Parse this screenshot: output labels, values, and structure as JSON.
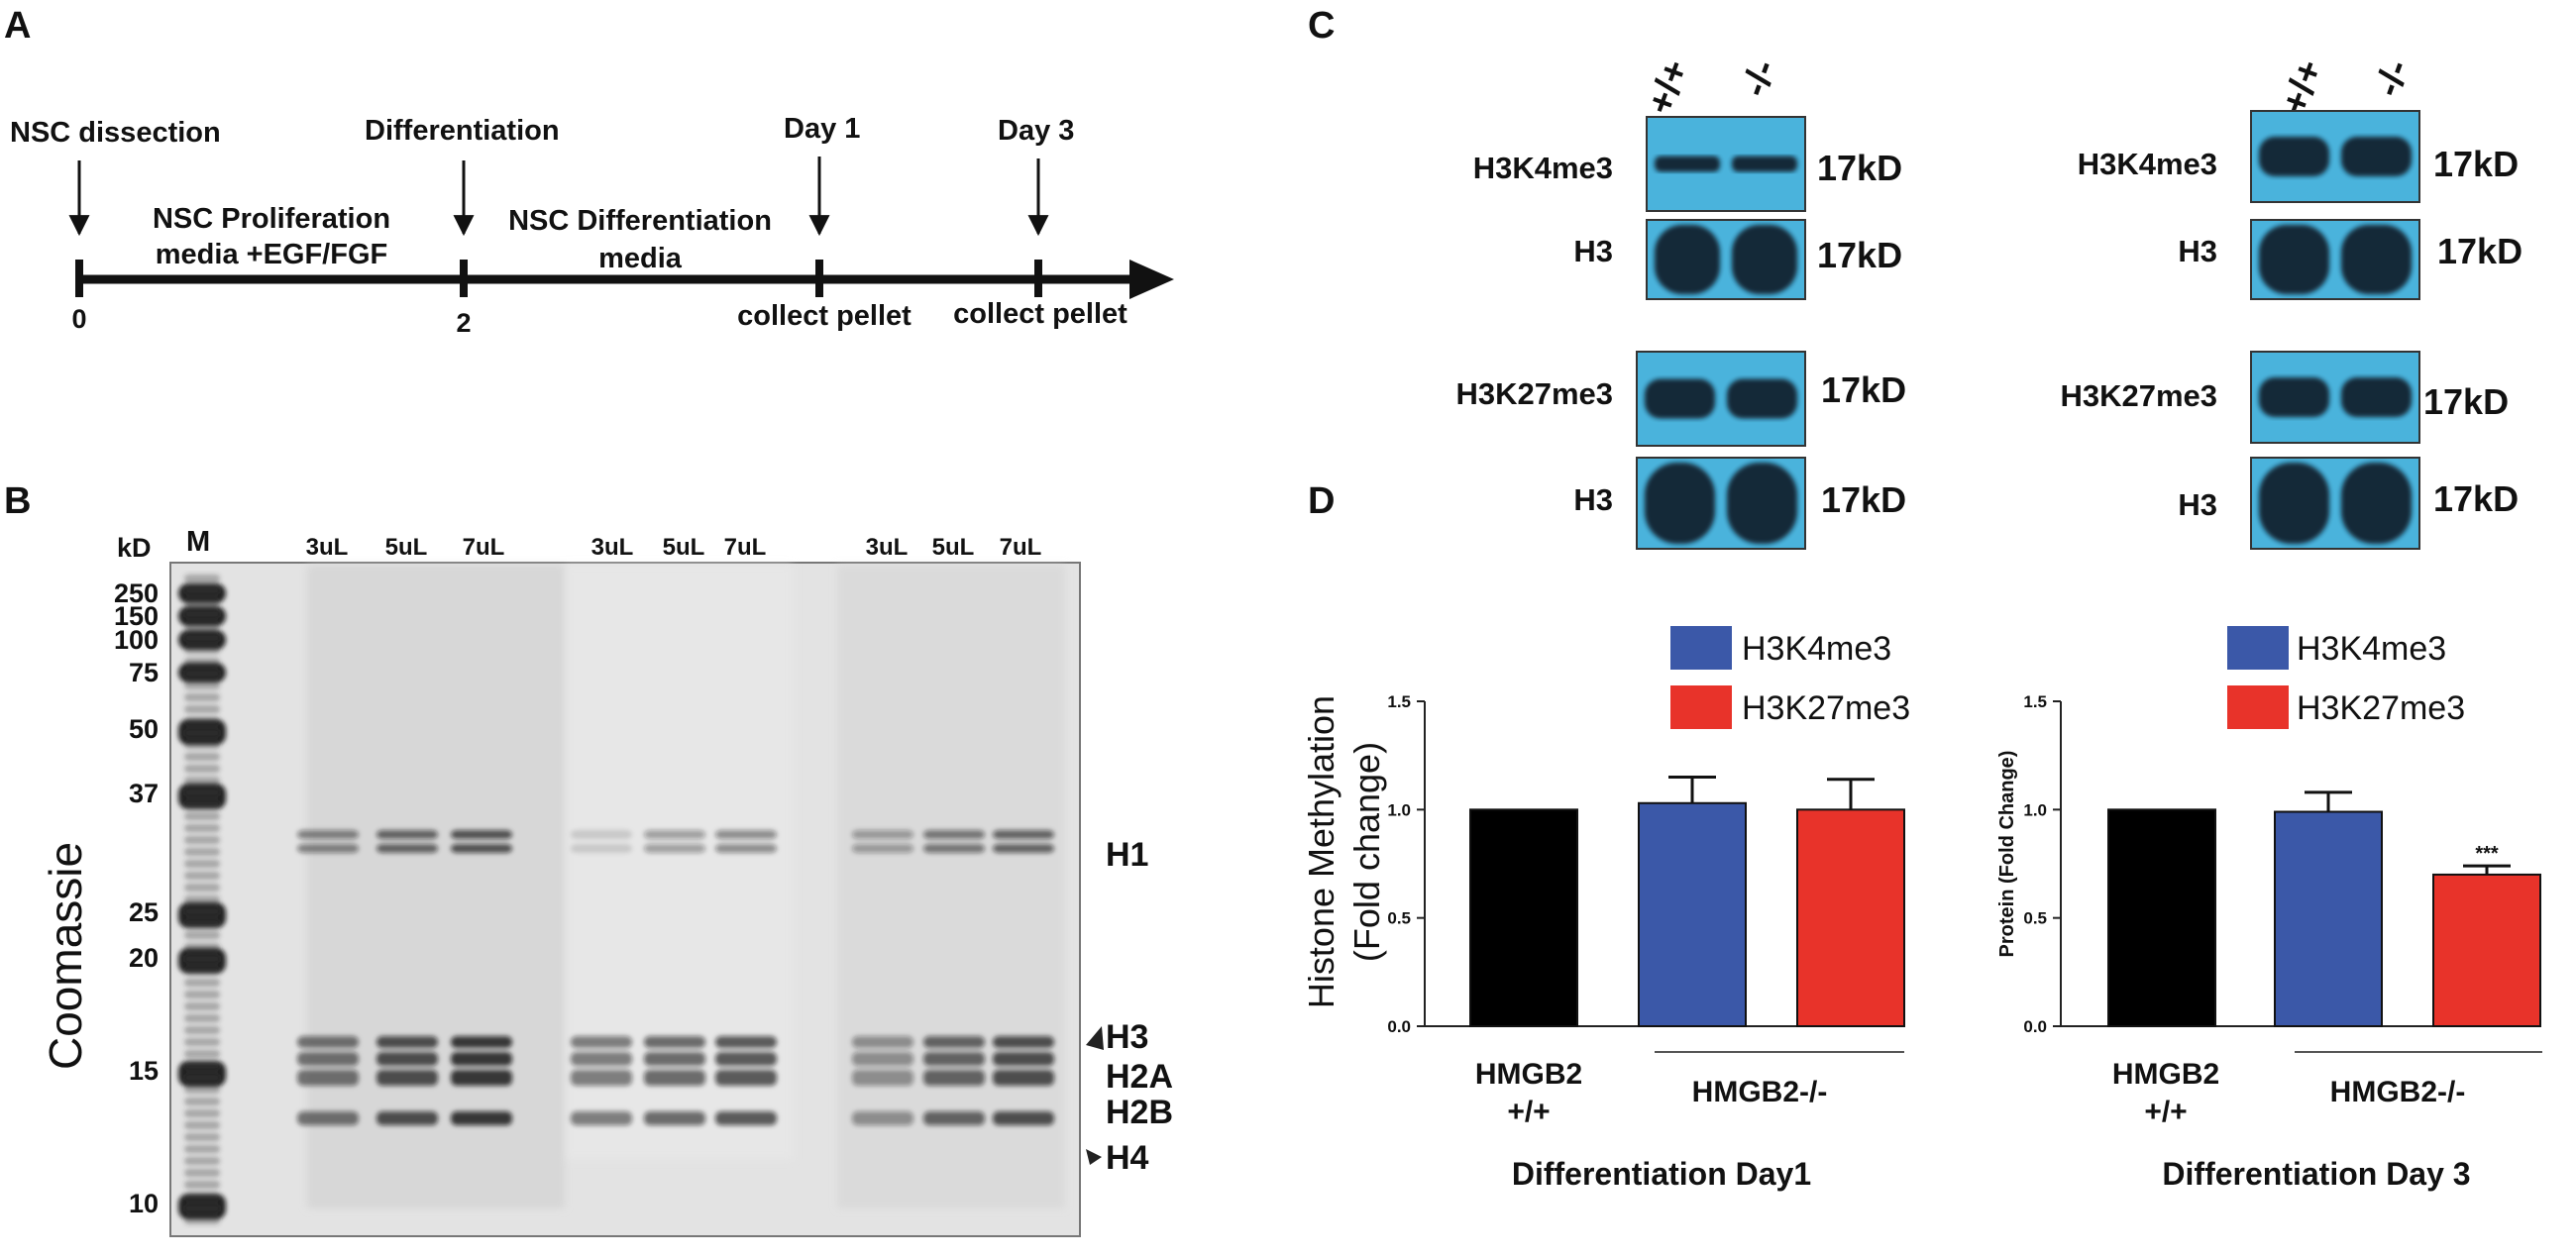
{
  "panel_labels": {
    "a": "A",
    "b": "B",
    "c": "C",
    "d": "D"
  },
  "timeline": {
    "events": [
      {
        "label": "NSC dissection",
        "tick": "0"
      },
      {
        "label": "Differentiation",
        "tick": "2"
      },
      {
        "label": "Day 1",
        "tick": ""
      },
      {
        "label": "Day 3",
        "tick": ""
      }
    ],
    "proliferation_line1": "NSC Proliferation",
    "proliferation_line2": "media +EGF/FGF",
    "differentiation_line1": "NSC Differentiation",
    "differentiation_line2": "media",
    "collect_day1": "collect pellet",
    "collect_day3": "collect pellet"
  },
  "gel": {
    "kd_label": "kD",
    "marker_label": "M",
    "side_label": "Coomassie",
    "lane_labels": [
      "3uL",
      "5uL",
      "7uL",
      "3uL",
      "5uL",
      "7uL",
      "3uL",
      "5uL",
      "7uL"
    ],
    "markers": [
      "250",
      "150",
      "100",
      "75",
      "50",
      "37",
      "25",
      "20",
      "15",
      "10"
    ],
    "histones": [
      "H1",
      "H3",
      "H2A",
      "H2B",
      "H4"
    ]
  },
  "westerns": {
    "genotype_wt": "+/+",
    "genotype_ko": "-/-",
    "size": "17kD",
    "left": {
      "row1": "H3K4me3",
      "row2": "H3",
      "row3": "H3K27me3",
      "row4": "H3"
    },
    "right": {
      "row1": "H3K4me3",
      "row2": "H3",
      "row3": "H3K27me3",
      "row4": "H3"
    },
    "blot_color": "#4ab3dc"
  },
  "chart_data": [
    {
      "type": "bar",
      "ylabel_line1": "Histone Methylation",
      "ylabel_line2": "(Fold change)",
      "xlabel": "Differentiation Day1",
      "ylim": [
        0,
        1.5
      ],
      "yticks": [
        "0.0",
        "0.5",
        "1.0",
        "1.5"
      ],
      "bars": [
        {
          "series": "HMGB2 +/+",
          "value": 1.0,
          "error": 0,
          "color": "#000000"
        },
        {
          "series": "H3K4me3",
          "value": 1.03,
          "error": 0.12,
          "color": "#3b58a8"
        },
        {
          "series": "H3K27me3",
          "value": 1.0,
          "error": 0.14,
          "color": "#e8332a"
        }
      ],
      "legend": [
        "H3K4me3",
        "H3K27me3"
      ],
      "group_wt_line1": "HMGB2",
      "group_wt_line2": "+/+",
      "group_ko": "HMGB2-/-"
    },
    {
      "type": "bar",
      "ylabel_line1": "Protein (Fold Change)",
      "xlabel": "Differentiation Day 3",
      "ylim": [
        0,
        1.5
      ],
      "yticks": [
        "0.0",
        "0.5",
        "1.0",
        "1.5"
      ],
      "bars": [
        {
          "series": "HMGB2 +/+",
          "value": 1.0,
          "error": 0,
          "color": "#000000"
        },
        {
          "series": "H3K4me3",
          "value": 0.99,
          "error": 0.09,
          "color": "#3b58a8"
        },
        {
          "series": "H3K27me3",
          "value": 0.7,
          "error": 0.04,
          "color": "#e8332a"
        }
      ],
      "significance": "***",
      "legend": [
        "H3K4me3",
        "H3K27me3"
      ],
      "group_wt_line1": "HMGB2",
      "group_wt_line2": "+/+",
      "group_ko": "HMGB2-/-"
    }
  ]
}
